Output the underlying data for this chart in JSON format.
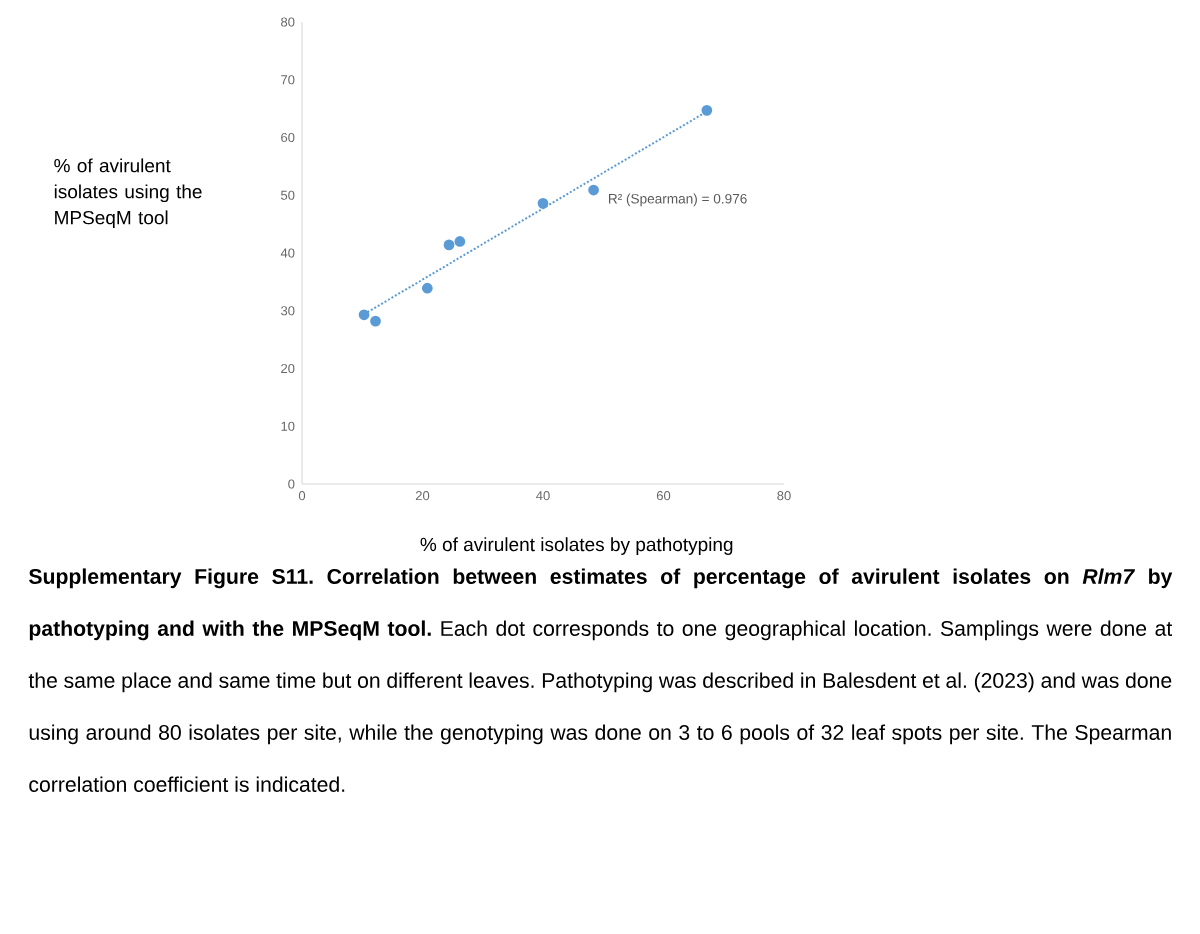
{
  "chart_data": {
    "type": "scatter",
    "xlabel": "% of avirulent isolates by pathotyping",
    "ylabel": "% of avirulent isolates using the MPSeqM  tool",
    "xlim": [
      0,
      80
    ],
    "xticks": [
      0,
      20,
      40,
      60,
      80
    ],
    "ylim": [
      0,
      80
    ],
    "yticks": [
      0,
      10,
      20,
      30,
      40,
      50,
      60,
      70,
      80
    ],
    "grid": false,
    "series": [
      {
        "color": "#5b9bd5",
        "marker": "circle",
        "x": [
          10.3,
          12.2,
          20.8,
          24.4,
          26.2,
          40.0,
          48.4,
          67.2
        ],
        "values": [
          29.3,
          28.2,
          33.9,
          41.4,
          42.0,
          48.6,
          50.9,
          64.7
        ]
      },
      {
        "type": "line",
        "color": "#5b9bd5",
        "marker": "none",
        "line_style": "dotted",
        "x": [
          10.3,
          67.2
        ],
        "values": [
          29.4,
          64.5
        ]
      }
    ],
    "annotations": [
      "R² (Spearman)  = 0.976",
      "**Supplementary Figure S11. Correlation between estimates of percentage of avirulent isolates on *Rlm7* by pathotyping and with the MPSeqM tool.** Each dot corresponds to one geographical location. Samplings were done at the same place and same time but on different leaves. Pathotyping was described in Balesdent et al. (2023) and was done using around 80 isolates per site, while the genotyping was done on 3 to 6 pools of 32 leaf spots per site. The Spearman correlation coefficient is indicated."
    ]
  }
}
